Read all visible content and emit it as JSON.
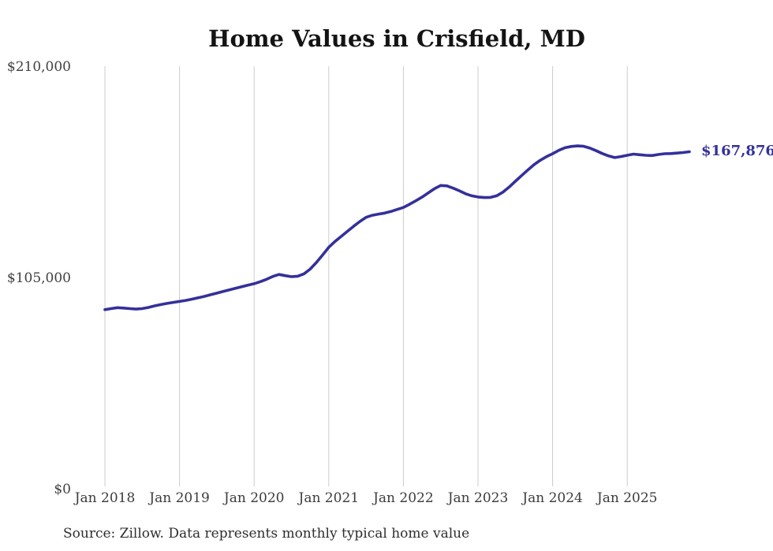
{
  "chart": {
    "title": "Home Values in Crisfield, MD",
    "end_label": "$167,876",
    "source": "Source: Zillow. Data represents monthly typical home value",
    "colors": {
      "line": "#34309b",
      "end_label_text": "#34309b",
      "grid": "#cccccc",
      "axis_text": "#3c3c3c",
      "title_text": "#141414",
      "background": "#ffffff"
    }
  },
  "chart_data": {
    "type": "line",
    "title": "Home Values in Crisfield, MD",
    "series_name": "Typical home value (monthly)",
    "x_start": "Jan 2018",
    "x_end": "Nov 2025",
    "frequency": "monthly",
    "values": [
      89400,
      89900,
      90400,
      90200,
      89900,
      89700,
      89900,
      90500,
      91300,
      91900,
      92500,
      93000,
      93500,
      94000,
      94600,
      95300,
      96000,
      96800,
      97600,
      98400,
      99200,
      100000,
      100800,
      101600,
      102300,
      103300,
      104500,
      105900,
      106900,
      106300,
      105800,
      106000,
      107200,
      109500,
      112800,
      116500,
      120400,
      123300,
      125800,
      128300,
      130800,
      133200,
      135300,
      136300,
      136900,
      137400,
      138200,
      139200,
      140200,
      141800,
      143500,
      145300,
      147400,
      149500,
      151100,
      150900,
      149800,
      148500,
      147000,
      146000,
      145400,
      145100,
      145200,
      146000,
      147800,
      150300,
      153200,
      156000,
      158800,
      161400,
      163600,
      165400,
      166900,
      168600,
      169900,
      170500,
      170800,
      170600,
      169700,
      168400,
      167000,
      165800,
      165000,
      165500,
      166100,
      166700,
      166400,
      166100,
      166000,
      166500,
      166900,
      167000,
      167200,
      167500,
      167876
    ],
    "final_value": 167876,
    "end_annotation": "$167,876",
    "x_tick_labels": [
      "Jan 2018",
      "Jan 2019",
      "Jan 2020",
      "Jan 2021",
      "Jan 2022",
      "Jan 2023",
      "Jan 2024",
      "Jan 2025"
    ],
    "x_tick_month_indices": [
      0,
      12,
      24,
      36,
      48,
      60,
      72,
      84
    ],
    "y_tick_labels": [
      "$0",
      "$105,000",
      "$210,000"
    ],
    "y_tick_values": [
      0,
      105000,
      210000
    ],
    "ylim": [
      0,
      210000
    ],
    "grid": "vertical-only",
    "legend": "none"
  }
}
